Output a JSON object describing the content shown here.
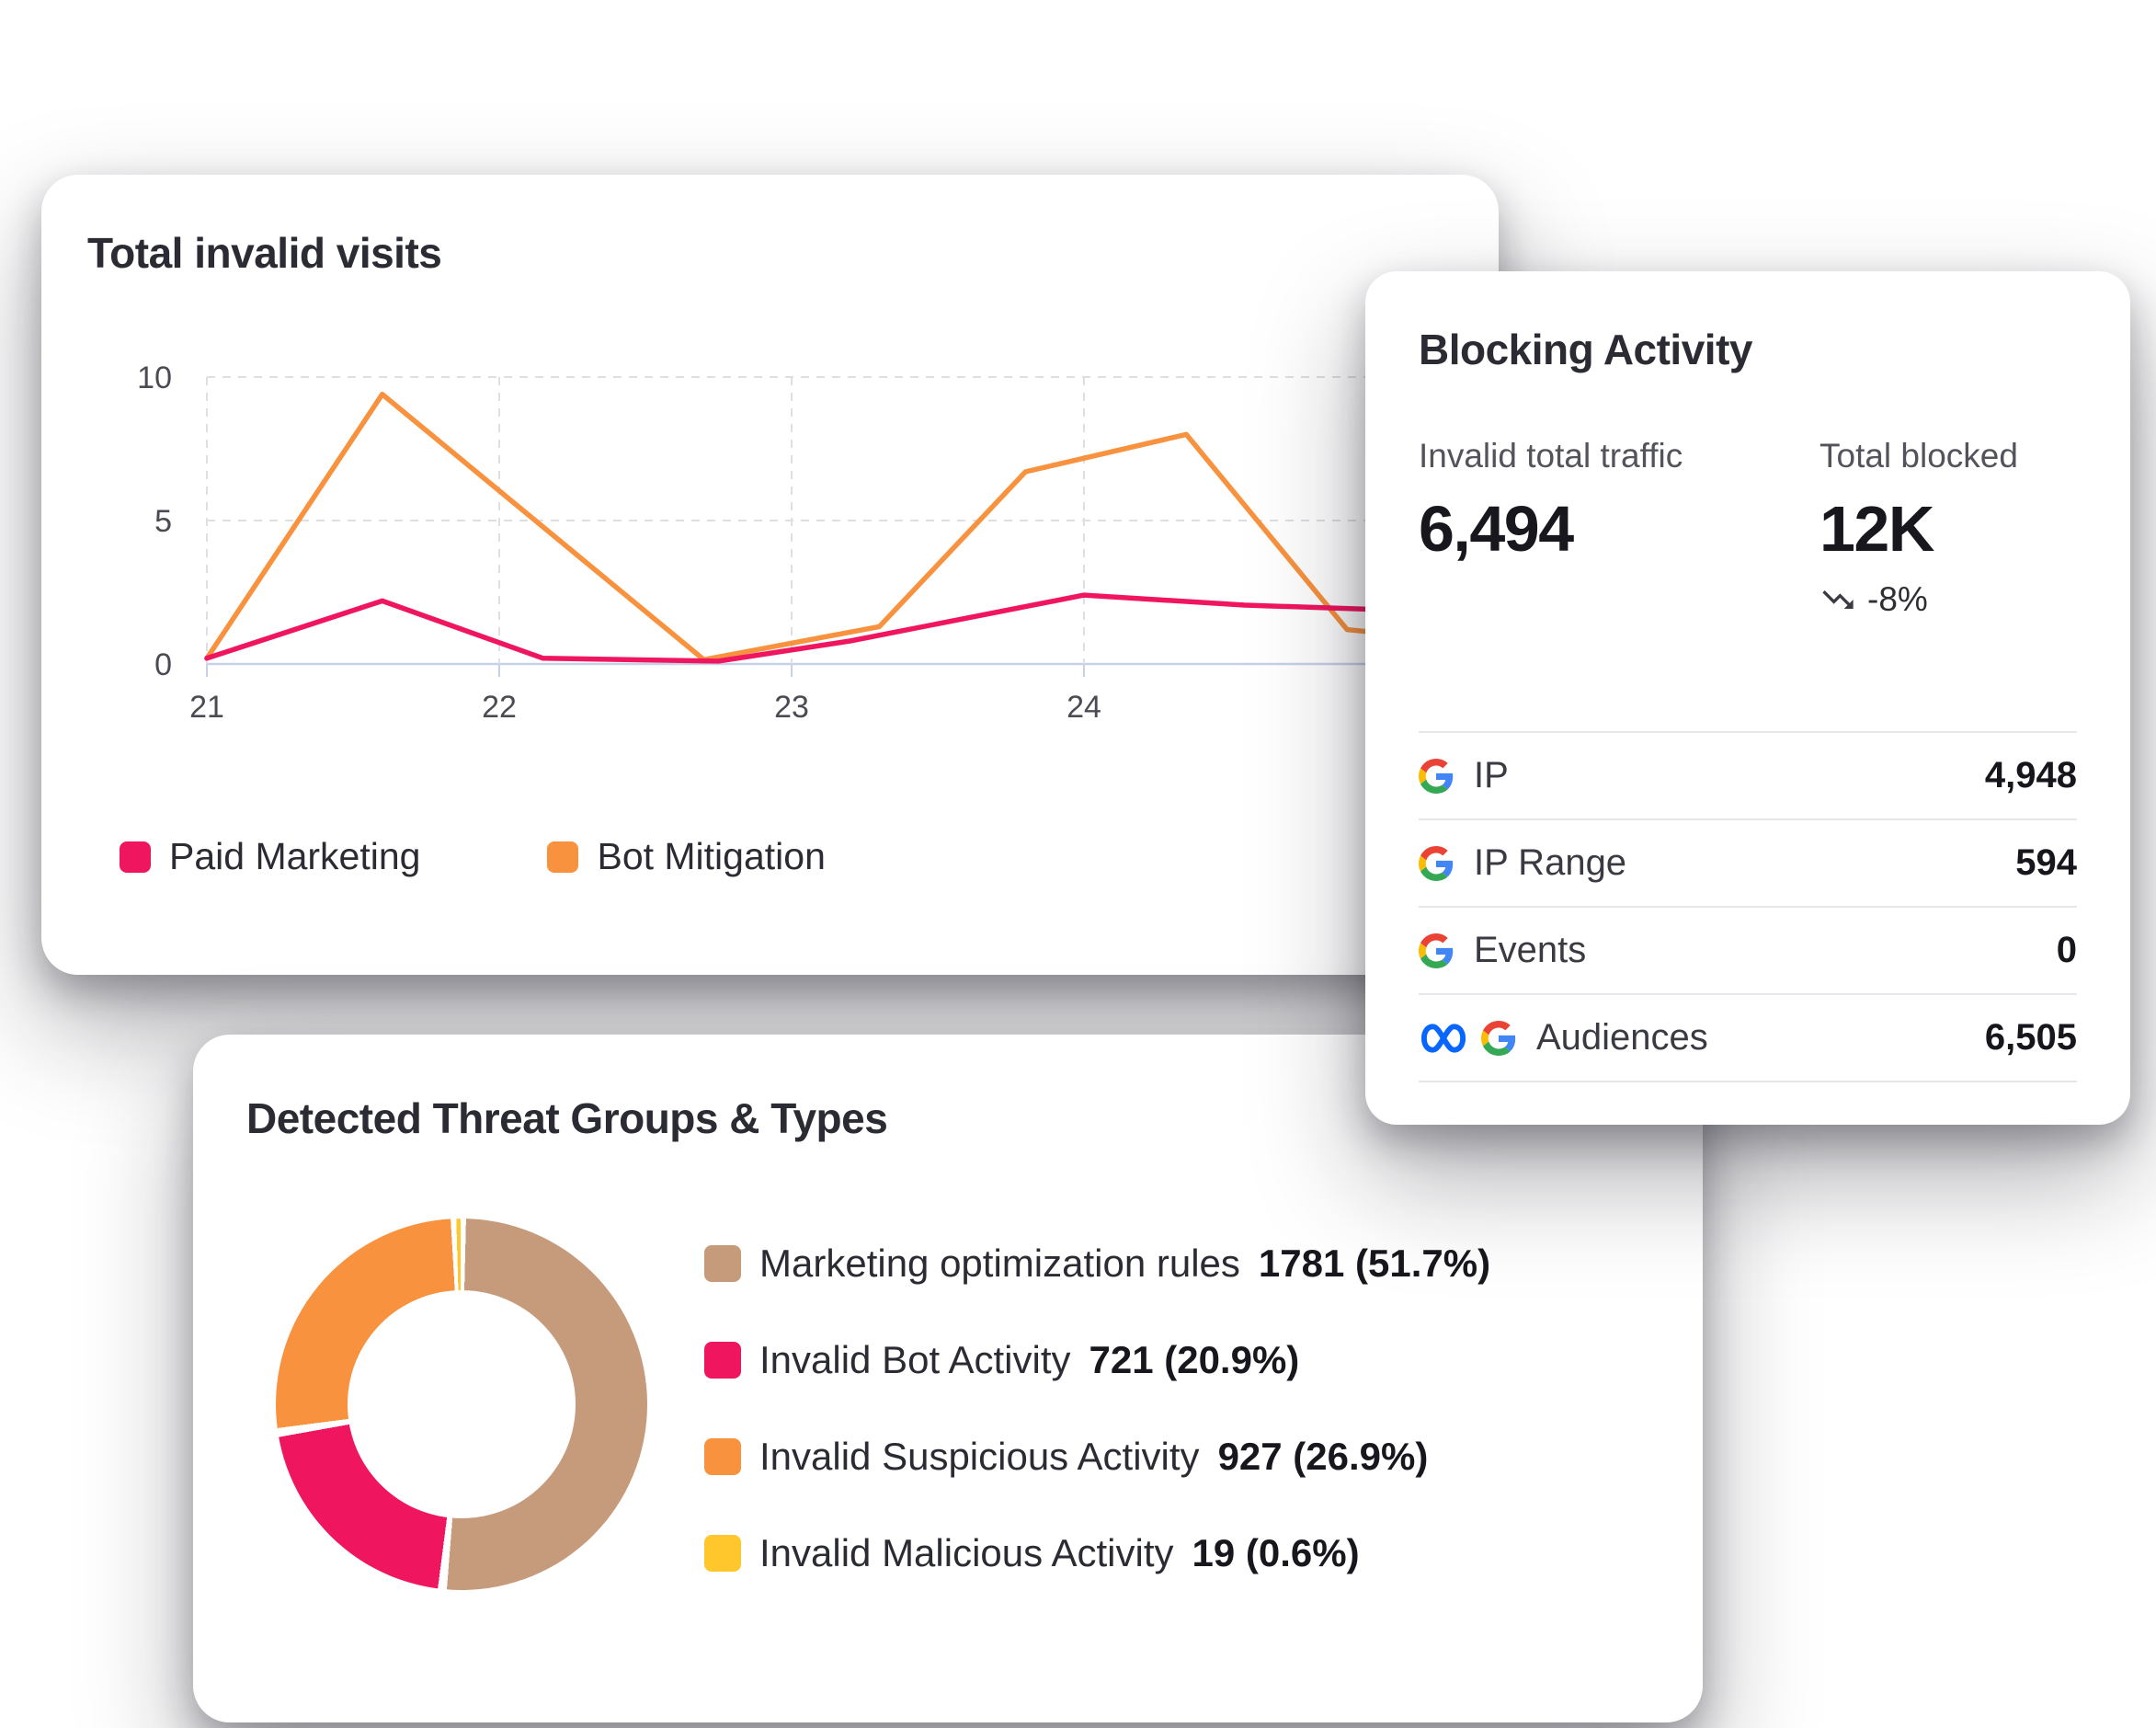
{
  "colors": {
    "paid_marketing_pink": "#F0155F",
    "bot_mitigation_orange": "#F8923E",
    "marketing_rules_tan": "#C59B7C",
    "suspicious_orange": "#F8923E",
    "malicious_yellow": "#FFC72C",
    "meta_blue": "#0866FF",
    "axis_baseline": "#C7D1EA",
    "gridline": "#DEDEE3"
  },
  "visits_card": {
    "title": "Total invalid visits"
  },
  "chart_data": [
    {
      "type": "line",
      "title": "Total invalid visits",
      "xlim": [
        21,
        25.0
      ],
      "ylim": [
        0,
        10
      ],
      "x_ticks": [
        21,
        22,
        23,
        24
      ],
      "y_ticks": [
        0,
        5,
        10
      ],
      "grid": "dashed",
      "legend_position": "bottom",
      "series": [
        {
          "name": "Paid Marketing",
          "color": "#F0155F",
          "points": [
            [
              21,
              0.2
            ],
            [
              21.6,
              2.2
            ],
            [
              22.15,
              0.2
            ],
            [
              22.75,
              0.1
            ],
            [
              23.2,
              0.8
            ],
            [
              24.0,
              2.4
            ],
            [
              24.55,
              2.05
            ],
            [
              25.0,
              1.9
            ]
          ]
        },
        {
          "name": "Bot Mitigation",
          "color": "#F8923E",
          "points": [
            [
              21,
              0.2
            ],
            [
              21.6,
              9.4
            ],
            [
              22.7,
              0.15
            ],
            [
              23.3,
              1.3
            ],
            [
              23.8,
              6.7
            ],
            [
              24.35,
              8.0
            ],
            [
              24.9,
              1.2
            ],
            [
              25.0,
              1.1
            ]
          ]
        }
      ]
    },
    {
      "type": "donut",
      "title": "Detected Threat Groups & Types",
      "segments": [
        {
          "label": "Marketing optimization rules",
          "value": 1781,
          "pct": 51.7,
          "display": "1781 (51.7%)",
          "color": "#C59B7C"
        },
        {
          "label": "Invalid Bot Activity",
          "value": 721,
          "pct": 20.9,
          "display": "721 (20.9%)",
          "color": "#F0155F"
        },
        {
          "label": "Invalid Suspicious Activity",
          "value": 927,
          "pct": 26.9,
          "display": "927 (26.9%)",
          "color": "#F8923E"
        },
        {
          "label": "Invalid Malicious Activity",
          "value": 19,
          "pct": 0.6,
          "display": "19 (0.6%)",
          "color": "#FFC72C"
        }
      ]
    }
  ],
  "blocking_card": {
    "title": "Blocking Activity",
    "stats": [
      {
        "label": "Invalid total traffic",
        "value": "6,494"
      },
      {
        "label": "Total blocked",
        "value": "12K",
        "trend": "-8%",
        "trend_icon": "trending-down-icon"
      }
    ],
    "rows": [
      {
        "icons": [
          "google-icon"
        ],
        "label": "IP",
        "value": "4,948"
      },
      {
        "icons": [
          "google-icon"
        ],
        "label": "IP Range",
        "value": "594"
      },
      {
        "icons": [
          "google-icon"
        ],
        "label": "Events",
        "value": "0"
      },
      {
        "icons": [
          "meta-icon",
          "google-icon"
        ],
        "label": "Audiences",
        "value": "6,505"
      }
    ]
  },
  "threats_card": {
    "title": "Detected Threat Groups & Types"
  }
}
